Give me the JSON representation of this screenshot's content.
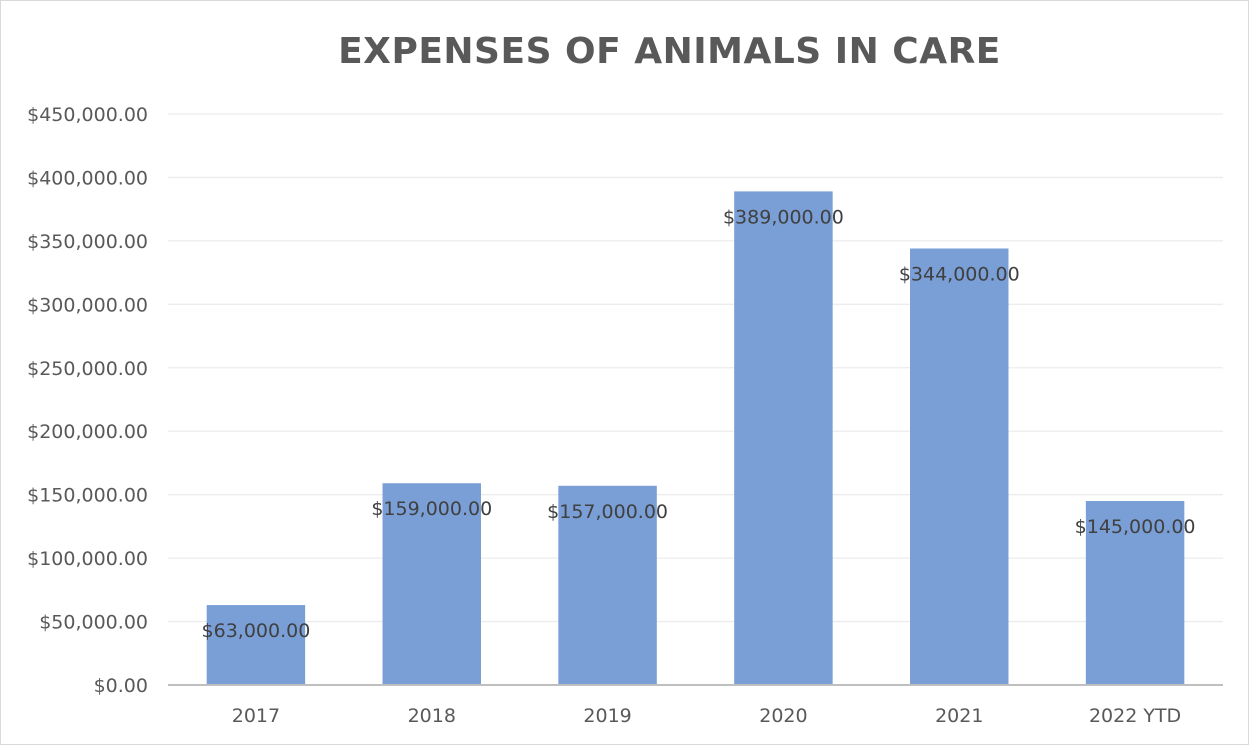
{
  "chart_data": {
    "type": "bar",
    "title": "EXPENSES OF ANIMALS IN CARE",
    "xlabel": "",
    "ylabel": "",
    "categories": [
      "2017",
      "2018",
      "2019",
      "2020",
      "2021",
      "2022 YTD"
    ],
    "values": [
      63000,
      159000,
      157000,
      389000,
      344000,
      145000
    ],
    "data_labels": [
      "$63,000.00",
      "$159,000.00",
      "$157,000.00",
      "$389,000.00",
      "$344,000.00",
      "$145,000.00"
    ],
    "ylim": [
      0,
      450000
    ],
    "y_ticks": [
      0,
      50000,
      100000,
      150000,
      200000,
      250000,
      300000,
      350000,
      400000,
      450000
    ],
    "y_tick_labels": [
      "$0.00",
      "$50,000.00",
      "$100,000.00",
      "$150,000.00",
      "$200,000.00",
      "$250,000.00",
      "$300,000.00",
      "$350,000.00",
      "$400,000.00",
      "$450,000.00"
    ],
    "grid": true,
    "legend": "none",
    "colors": {
      "bar": "#7a9fd6",
      "gridline": "#ececec",
      "axis": "#bfbfbf",
      "title": "#595959",
      "tick_text": "#595959",
      "label_text": "#404040"
    }
  }
}
